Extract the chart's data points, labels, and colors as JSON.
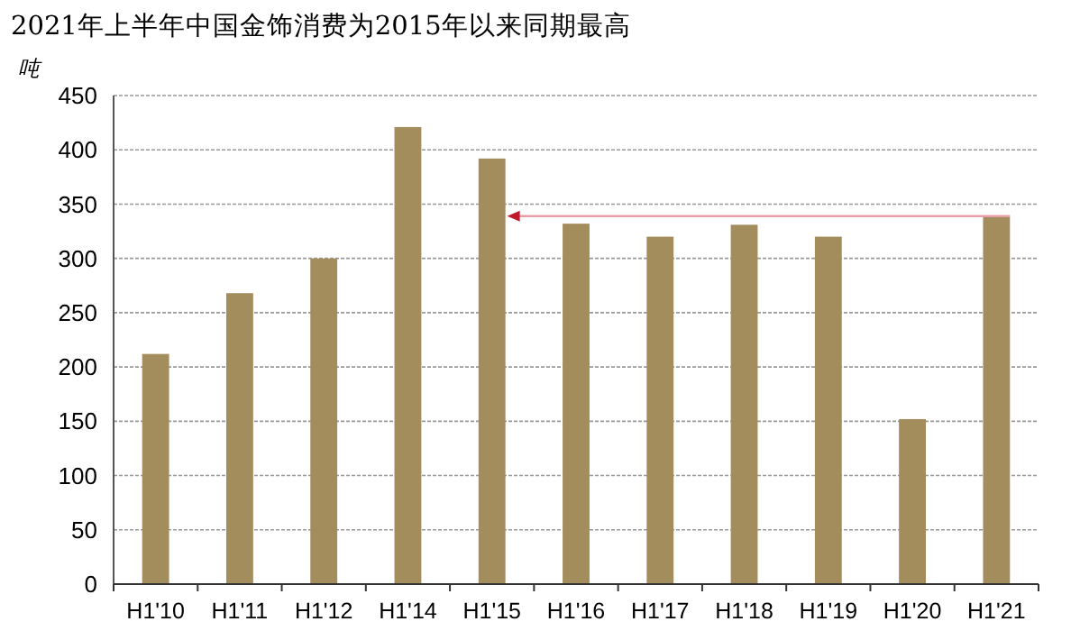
{
  "chart_data": {
    "type": "bar",
    "title": "2021年上半年中国金饰消费为2015年以来同期最高",
    "ylabel": "吨",
    "categories": [
      "H1'10",
      "H1'11",
      "H1'12",
      "H1'14",
      "H1'15",
      "H1'16",
      "H1'17",
      "H1'18",
      "H1'19",
      "H1'20",
      "H1'21"
    ],
    "values": [
      212,
      268,
      300,
      421,
      392,
      332,
      320,
      331,
      320,
      152,
      339
    ],
    "color": "#a38d5d",
    "ylim": [
      0,
      450
    ],
    "yticks": [
      0,
      50,
      100,
      150,
      200,
      250,
      300,
      350,
      400,
      450
    ],
    "grid": "y"
  }
}
